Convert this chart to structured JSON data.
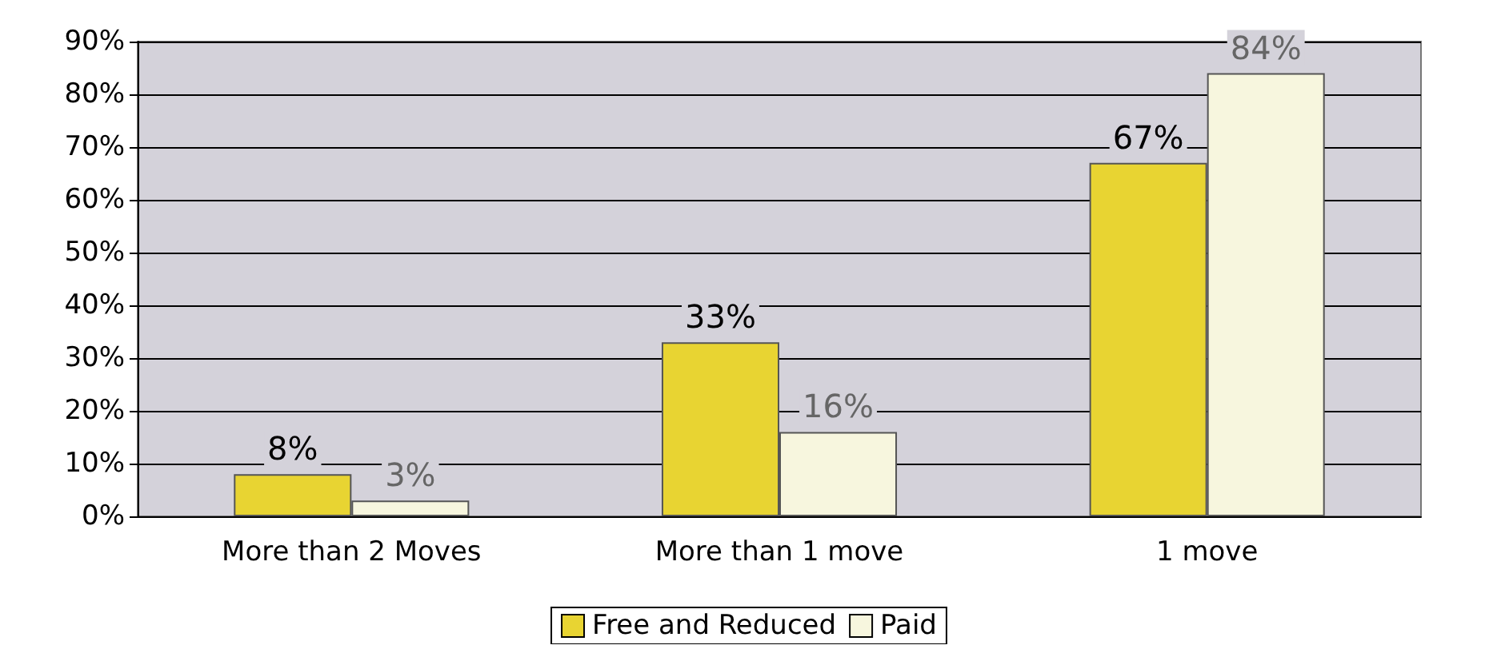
{
  "chart_data": {
    "type": "bar",
    "categories": [
      "More than 2 Moves",
      "More than 1 move",
      "1 move"
    ],
    "series": [
      {
        "name": "Free and Reduced",
        "color": "#e8d432",
        "values": [
          8,
          33,
          67
        ],
        "value_labels": [
          "8%",
          "33%",
          "67%"
        ]
      },
      {
        "name": "Paid",
        "color": "#f7f6de",
        "values": [
          3,
          16,
          84
        ],
        "value_labels": [
          "3%",
          "16%",
          "84%"
        ]
      }
    ],
    "ylim": [
      0,
      90
    ],
    "yticks": [
      {
        "value": 0,
        "label": "0%"
      },
      {
        "value": 10,
        "label": "10%"
      },
      {
        "value": 20,
        "label": "20%"
      },
      {
        "value": 30,
        "label": "30%"
      },
      {
        "value": 40,
        "label": "40%"
      },
      {
        "value": 50,
        "label": "50%"
      },
      {
        "value": 60,
        "label": "60%"
      },
      {
        "value": 70,
        "label": "70%"
      },
      {
        "value": 80,
        "label": "80%"
      },
      {
        "value": 90,
        "label": "90%"
      }
    ],
    "grid": "y",
    "legend": "bottom"
  }
}
